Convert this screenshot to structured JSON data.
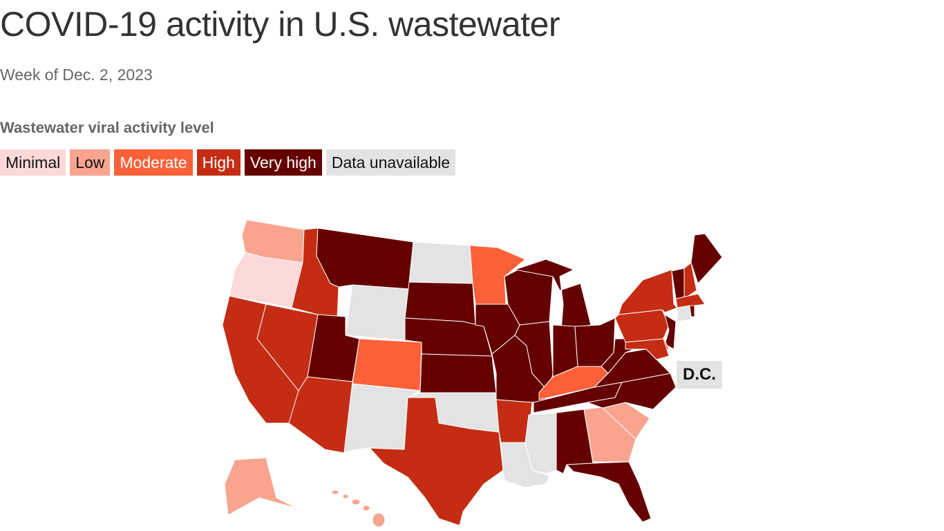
{
  "title": "COVID-19 activity in U.S. wastewater",
  "subtitle": "Week of Dec. 2, 2023",
  "legend": {
    "title": "Wastewater viral activity level",
    "items": [
      {
        "label": "Minimal",
        "color": "#fdd9d9",
        "text_color": "#111111"
      },
      {
        "label": "Low",
        "color": "#f9a48f",
        "text_color": "#111111"
      },
      {
        "label": "Moderate",
        "color": "#fb6038",
        "text_color": "#ffffff"
      },
      {
        "label": "High",
        "color": "#c42d13",
        "text_color": "#ffffff"
      },
      {
        "label": "Very high",
        "color": "#650000",
        "text_color": "#ffffff"
      },
      {
        "label": "Data unavailable",
        "color": "#e3e3e3",
        "text_color": "#111111"
      }
    ]
  },
  "dc_label": "D.C.",
  "states": {
    "WA": "Low",
    "OR": "Minimal",
    "CA": "High",
    "ID": "High",
    "NV": "High",
    "MT": "Very high",
    "WY": "Data unavailable",
    "UT": "Very high",
    "AZ": "High",
    "CO": "Moderate",
    "NM": "Data unavailable",
    "ND": "Data unavailable",
    "SD": "Very high",
    "NE": "Very high",
    "KS": "Very high",
    "OK": "Data unavailable",
    "TX": "High",
    "MN": "Moderate",
    "IA": "Very high",
    "MO": "Very high",
    "AR": "High",
    "LA": "Data unavailable",
    "WI": "Very high",
    "IL": "Very high",
    "MS": "Data unavailable",
    "MI": "Very high",
    "IN": "Very high",
    "KY": "Moderate",
    "TN": "Very high",
    "AL": "Very high",
    "OH": "Very high",
    "WV": "Very high",
    "VA": "Very high",
    "NC": "Very high",
    "SC": "Low",
    "GA": "Low",
    "FL": "Very high",
    "PA": "High",
    "NY": "High",
    "NJ": "Very high",
    "DE": "Moderate",
    "MD": "High",
    "CT": "Data unavailable",
    "RI": "Very high",
    "MA": "High",
    "VT": "Very high",
    "NH": "High",
    "ME": "Very high",
    "AK": "Low",
    "HI": "Low",
    "DC": "Data unavailable"
  }
}
